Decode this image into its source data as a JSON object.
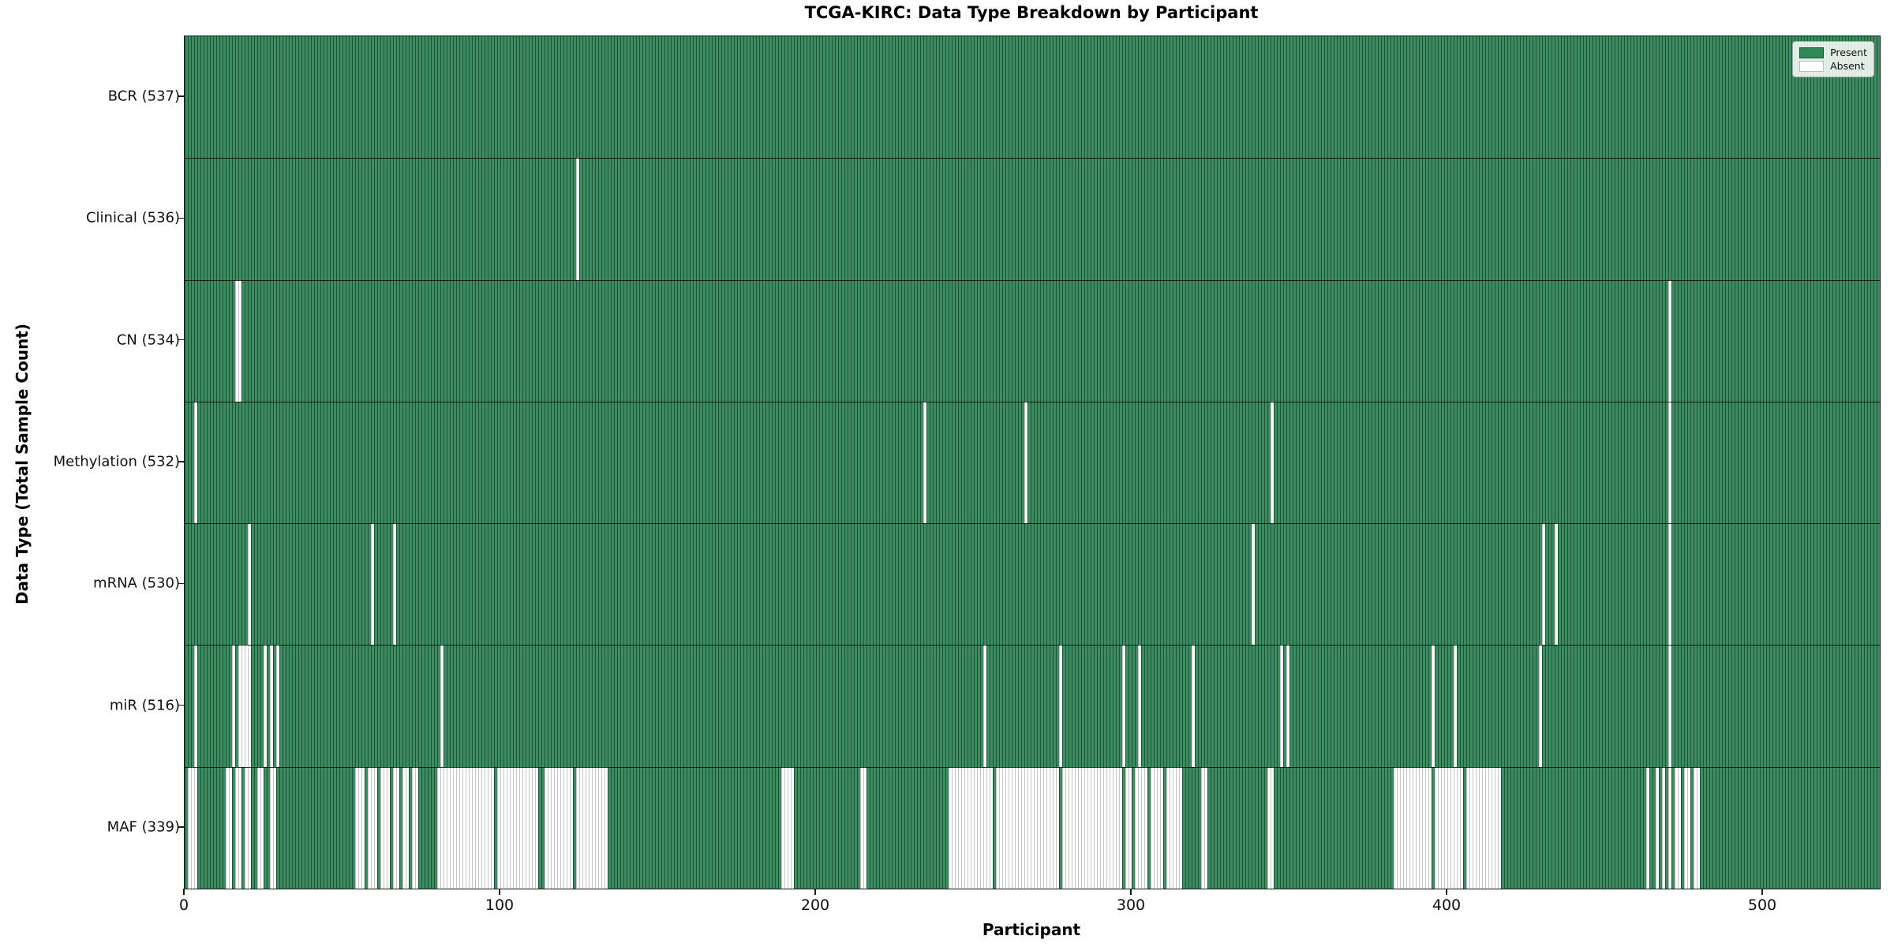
{
  "figure": {
    "title": "TCGA-KIRC: Data Type Breakdown by Participant",
    "xlabel": "Participant",
    "ylabel": "Data Type (Total Sample Count)"
  },
  "legend": {
    "present_label": "Present",
    "absent_label": "Absent"
  },
  "chart_data": {
    "type": "heatmap",
    "title": "TCGA-KIRC: Data Type Breakdown by Participant",
    "xlabel": "Participant",
    "ylabel": "Data Type (Total Sample Count)",
    "legend_entries": [
      "Present",
      "Absent"
    ],
    "legend_position": "upper right",
    "grid": false,
    "n_participants": 537,
    "xlim": [
      0,
      537
    ],
    "x_ticks": [
      0,
      100,
      200,
      300,
      400,
      500
    ],
    "colors": {
      "present": "#2e8b57",
      "present_edge": "#1d5236",
      "absent": "#ffffff",
      "absent_edge": "#c6c6c6"
    },
    "rows": [
      {
        "name": "BCR",
        "label": "BCR (537)",
        "present_count": 537,
        "absent_count": 0,
        "absent_ranges": []
      },
      {
        "name": "Clinical",
        "label": "Clinical (536)",
        "present_count": 536,
        "absent_count": 1,
        "absent_ranges": [
          [
            124,
            124
          ]
        ]
      },
      {
        "name": "CN",
        "label": "CN (534)",
        "present_count": 534,
        "absent_count": 3,
        "absent_ranges": [
          [
            16,
            17
          ],
          [
            470,
            470
          ]
        ]
      },
      {
        "name": "Methylation",
        "label": "Methylation (532)",
        "present_count": 532,
        "absent_count": 5,
        "absent_ranges": [
          [
            3,
            3
          ],
          [
            234,
            234
          ],
          [
            266,
            266
          ],
          [
            344,
            344
          ],
          [
            470,
            470
          ]
        ]
      },
      {
        "name": "mRNA",
        "label": "mRNA (530)",
        "present_count": 530,
        "absent_count": 7,
        "absent_ranges": [
          [
            20,
            20
          ],
          [
            59,
            59
          ],
          [
            66,
            66
          ],
          [
            338,
            338
          ],
          [
            430,
            430
          ],
          [
            434,
            434
          ],
          [
            470,
            470
          ]
        ]
      },
      {
        "name": "miR",
        "label": "miR (516)",
        "present_count": 516,
        "absent_count": 21,
        "absent_ranges": [
          [
            3,
            3
          ],
          [
            15,
            15
          ],
          [
            17,
            20
          ],
          [
            25,
            25
          ],
          [
            27,
            27
          ],
          [
            29,
            29
          ],
          [
            81,
            81
          ],
          [
            253,
            253
          ],
          [
            277,
            277
          ],
          [
            297,
            297
          ],
          [
            302,
            302
          ],
          [
            319,
            319
          ],
          [
            347,
            347
          ],
          [
            349,
            349
          ],
          [
            395,
            395
          ],
          [
            402,
            402
          ],
          [
            429,
            429
          ],
          [
            470,
            470
          ]
        ]
      },
      {
        "name": "MAF",
        "label": "MAF (339)",
        "present_count": 339,
        "absent_count": 198,
        "absent_ranges": [
          [
            1,
            3
          ],
          [
            13,
            14
          ],
          [
            16,
            17
          ],
          [
            19,
            20
          ],
          [
            23,
            24
          ],
          [
            27,
            28
          ],
          [
            54,
            56
          ],
          [
            58,
            60
          ],
          [
            62,
            64
          ],
          [
            66,
            67
          ],
          [
            69,
            70
          ],
          [
            72,
            73
          ],
          [
            80,
            97
          ],
          [
            99,
            111
          ],
          [
            114,
            122
          ],
          [
            124,
            133
          ],
          [
            189,
            192
          ],
          [
            214,
            215
          ],
          [
            242,
            255
          ],
          [
            257,
            276
          ],
          [
            278,
            296
          ],
          [
            298,
            299
          ],
          [
            301,
            304
          ],
          [
            306,
            309
          ],
          [
            311,
            315
          ],
          [
            322,
            323
          ],
          [
            343,
            344
          ],
          [
            383,
            394
          ],
          [
            396,
            404
          ],
          [
            406,
            416
          ],
          [
            463,
            463
          ],
          [
            466,
            466
          ],
          [
            468,
            468
          ],
          [
            470,
            470
          ],
          [
            472,
            473
          ],
          [
            475,
            476
          ],
          [
            478,
            479
          ]
        ]
      }
    ]
  }
}
